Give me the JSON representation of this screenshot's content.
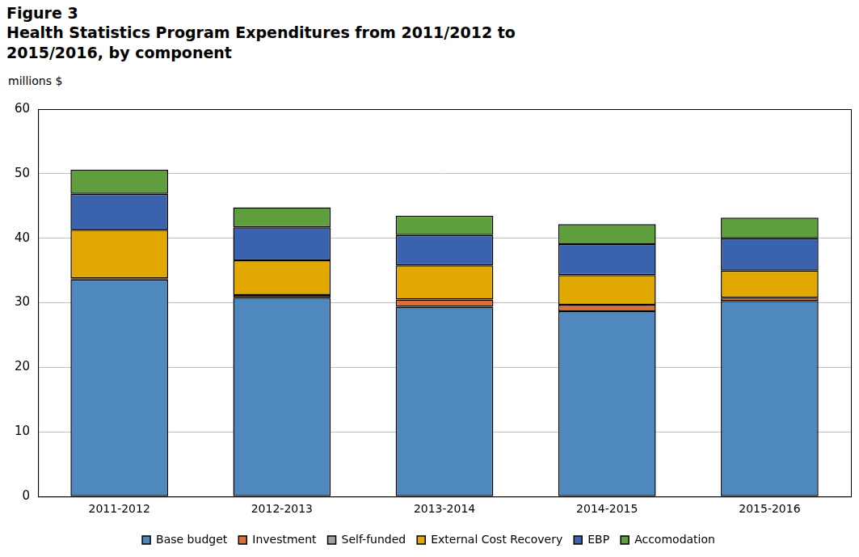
{
  "chart_data": {
    "type": "bar",
    "title": "Figure 3",
    "subtitle": "Health Statistics Program Expenditures from 2011/2012 to 2015/2016, by component",
    "y_label": "millions $",
    "categories": [
      "2011-2012",
      "2012-2013",
      "2013-2014",
      "2014-2015",
      "2015-2016"
    ],
    "series": [
      {
        "name": "Base budget",
        "color": "#4f88bd",
        "values": [
          33.6,
          30.8,
          29.4,
          28.7,
          30.3
        ]
      },
      {
        "name": "Investment",
        "color": "#d8703a",
        "values": [
          0.2,
          0.4,
          1.1,
          1.0,
          0.5
        ]
      },
      {
        "name": "Self-funded",
        "color": "#a0a0a0",
        "values": [
          0,
          0,
          0,
          0,
          0
        ]
      },
      {
        "name": "External Cost Recovery",
        "color": "#e0a800",
        "values": [
          7.5,
          5.4,
          5.3,
          4.6,
          4.2
        ]
      },
      {
        "name": "EBP",
        "color": "#3a62ad",
        "values": [
          5.6,
          5.1,
          4.7,
          4.8,
          5.0
        ]
      },
      {
        "name": "Accomodation",
        "color": "#5f9e3c",
        "values": [
          3.7,
          3.1,
          3.0,
          3.1,
          3.2
        ]
      }
    ],
    "stacked": true,
    "ylim": [
      0,
      60
    ],
    "yticks": [
      0,
      10,
      20,
      30,
      40,
      50,
      60
    ],
    "grid": true,
    "legend": "bottom"
  }
}
